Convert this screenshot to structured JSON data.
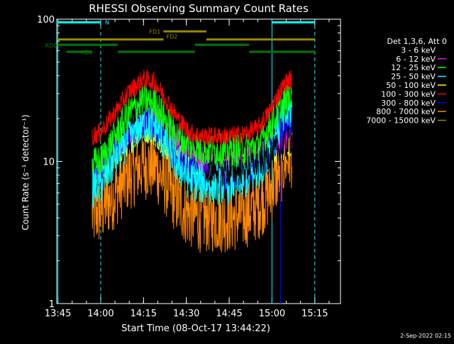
{
  "chart_data": {
    "type": "line",
    "title": "RHESSI Observing Summary Count Rates",
    "xlabel": "Start Time (08-Oct-17 13:44:22)",
    "ylabel": "Count Rate (s⁻¹ detector⁻¹)",
    "y_scale": "log",
    "ylim": [
      1,
      100
    ],
    "xlim_minutes": [
      -0.4,
      99
    ],
    "x_ticks": [
      {
        "label": "13:45",
        "minutes": 0
      },
      {
        "label": "14:00",
        "minutes": 15
      },
      {
        "label": "14:15",
        "minutes": 30
      },
      {
        "label": "14:30",
        "minutes": 45
      },
      {
        "label": "14:45",
        "minutes": 60
      },
      {
        "label": "15:00",
        "minutes": 75
      },
      {
        "label": "15:15",
        "minutes": 90
      }
    ],
    "y_ticks": [
      {
        "label": "1",
        "value": 1
      },
      {
        "label": "10",
        "value": 10
      },
      {
        "label": "100",
        "value": 100
      }
    ],
    "legend_header": "Det 1,3,6, Att 0",
    "legend_placement": "right",
    "series": [
      {
        "name": "3 - 6 keV",
        "color": "#000000",
        "noise": 0.12,
        "points": [
          [
            12,
            11
          ],
          [
            15,
            11.5
          ],
          [
            20,
            16
          ],
          [
            25,
            22
          ],
          [
            30,
            28
          ],
          [
            34,
            30
          ],
          [
            38,
            27
          ],
          [
            41,
            26
          ],
          [
            44,
            24
          ],
          [
            47,
            22
          ],
          [
            51,
            21
          ],
          [
            52,
            8
          ],
          [
            55,
            9
          ],
          [
            60,
            8.5
          ],
          [
            65,
            9
          ],
          [
            70,
            10
          ],
          [
            74,
            11
          ],
          [
            77,
            12
          ],
          [
            80,
            13
          ],
          [
            82,
            15
          ]
        ]
      },
      {
        "name": "6 - 12 keV",
        "color": "#ff00ff",
        "noise": 0.12,
        "points": [
          [
            12,
            9
          ],
          [
            15,
            9.5
          ],
          [
            20,
            13
          ],
          [
            25,
            17
          ],
          [
            30,
            20
          ],
          [
            35,
            20
          ],
          [
            38,
            17
          ],
          [
            41,
            14
          ],
          [
            44,
            12
          ],
          [
            47,
            11
          ],
          [
            50,
            10
          ],
          [
            53,
            9
          ],
          [
            56,
            8.8
          ],
          [
            60,
            9
          ],
          [
            65,
            9.5
          ],
          [
            70,
            10.5
          ],
          [
            74,
            12
          ],
          [
            77,
            14
          ],
          [
            80,
            15
          ],
          [
            82,
            16
          ]
        ]
      },
      {
        "name": "12 - 25 keV",
        "color": "#00ff00",
        "noise": 0.12,
        "points": [
          [
            12,
            9.5
          ],
          [
            15,
            10
          ],
          [
            20,
            15
          ],
          [
            25,
            22
          ],
          [
            30,
            27
          ],
          [
            34,
            26
          ],
          [
            38,
            19
          ],
          [
            42,
            15
          ],
          [
            46,
            13
          ],
          [
            50,
            12
          ],
          [
            55,
            12
          ],
          [
            60,
            12
          ],
          [
            65,
            12
          ],
          [
            70,
            13
          ],
          [
            74,
            17
          ],
          [
            77,
            22
          ],
          [
            80,
            27
          ],
          [
            82,
            30
          ]
        ]
      },
      {
        "name": "25 - 50 keV",
        "color": "#00ffff",
        "noise": 0.15,
        "points": [
          [
            12,
            6.5
          ],
          [
            15,
            7
          ],
          [
            20,
            10.5
          ],
          [
            25,
            15
          ],
          [
            30,
            19
          ],
          [
            34,
            18
          ],
          [
            38,
            13
          ],
          [
            42,
            9.5
          ],
          [
            46,
            7.5
          ],
          [
            50,
            7
          ],
          [
            55,
            7
          ],
          [
            60,
            7
          ],
          [
            65,
            7.5
          ],
          [
            70,
            8.5
          ],
          [
            74,
            12
          ],
          [
            77,
            17
          ],
          [
            80,
            21
          ],
          [
            82,
            24
          ]
        ]
      },
      {
        "name": "50 - 100 keV",
        "color": "#ffff00",
        "noise": 0.1,
        "points": [
          [
            12,
            8
          ],
          [
            15,
            8.5
          ],
          [
            20,
            11
          ],
          [
            25,
            14
          ],
          [
            30,
            17
          ],
          [
            34,
            16
          ],
          [
            38,
            13
          ],
          [
            42,
            11
          ],
          [
            46,
            9.5
          ],
          [
            50,
            9
          ],
          [
            55,
            9
          ],
          [
            60,
            9
          ],
          [
            65,
            9.3
          ],
          [
            70,
            10
          ],
          [
            74,
            11
          ],
          [
            77,
            12
          ],
          [
            80,
            13
          ],
          [
            82,
            14
          ]
        ]
      },
      {
        "name": "100 - 300 keV",
        "color": "#ff0000",
        "noise": 0.07,
        "points": [
          [
            12,
            15
          ],
          [
            15,
            16
          ],
          [
            20,
            22
          ],
          [
            25,
            31
          ],
          [
            30,
            38
          ],
          [
            34,
            36
          ],
          [
            38,
            27
          ],
          [
            42,
            20
          ],
          [
            46,
            16
          ],
          [
            50,
            15
          ],
          [
            55,
            15
          ],
          [
            60,
            15
          ],
          [
            65,
            15.5
          ],
          [
            70,
            17
          ],
          [
            74,
            22
          ],
          [
            77,
            29
          ],
          [
            80,
            36
          ],
          [
            82,
            38
          ]
        ]
      },
      {
        "name": "300 - 800 keV",
        "color": "#0000ff",
        "noise": 0.12,
        "points": [
          [
            12,
            8
          ],
          [
            15,
            8.5
          ],
          [
            20,
            12
          ],
          [
            25,
            16
          ],
          [
            30,
            19
          ],
          [
            34,
            18
          ],
          [
            38,
            13.5
          ],
          [
            42,
            10.5
          ],
          [
            46,
            8.8
          ],
          [
            50,
            8
          ],
          [
            55,
            8
          ],
          [
            60,
            8
          ],
          [
            65,
            8.3
          ],
          [
            70,
            9.2
          ],
          [
            74,
            11.5
          ],
          [
            77,
            15
          ],
          [
            80,
            18.5
          ],
          [
            82,
            20
          ]
        ]
      },
      {
        "name": "800 - 7000 keV",
        "color": "#ff8800",
        "noise": 0.25,
        "points": [
          [
            12,
            4.2
          ],
          [
            15,
            4.5
          ],
          [
            20,
            6
          ],
          [
            25,
            8
          ],
          [
            30,
            9.5
          ],
          [
            34,
            9.2
          ],
          [
            38,
            7
          ],
          [
            42,
            5.2
          ],
          [
            46,
            4.3
          ],
          [
            50,
            4
          ],
          [
            55,
            4
          ],
          [
            60,
            4
          ],
          [
            65,
            4.2
          ],
          [
            70,
            4.9
          ],
          [
            74,
            6
          ],
          [
            77,
            8
          ],
          [
            80,
            10.5
          ],
          [
            82,
            11.5
          ]
        ]
      },
      {
        "name": "7000 - 15000 keV",
        "color": "#998800",
        "noise": 0.05,
        "points": []
      }
    ],
    "annotations": {
      "eclipse_marks": [
        0,
        15,
        75,
        90
      ],
      "segments": [
        {
          "label": "N",
          "color": "#00ffff",
          "y": 95,
          "spans": [
            [
              0,
              15
            ],
            [
              75,
              90
            ]
          ]
        },
        {
          "label": "FD1",
          "color": "#998800",
          "y": 82,
          "spans": [
            [
              37,
              52
            ]
          ]
        },
        {
          "label": "FD2",
          "color": "#998800",
          "y": 72,
          "spans": [
            [
              0,
              37
            ],
            [
              52,
              90
            ]
          ]
        },
        {
          "label": "RD0",
          "color": "#007700",
          "y": 66,
          "spans": [
            [
              0,
              21
            ],
            [
              48,
              67
            ]
          ]
        },
        {
          "label": "RD6",
          "color": "#007700",
          "y": 59,
          "spans": [
            [
              3,
              12
            ],
            [
              21,
              48
            ],
            [
              67,
              90
            ]
          ]
        }
      ],
      "flare_drop_x": 78
    },
    "footer_date": "2-Sep-2022 02:15"
  }
}
